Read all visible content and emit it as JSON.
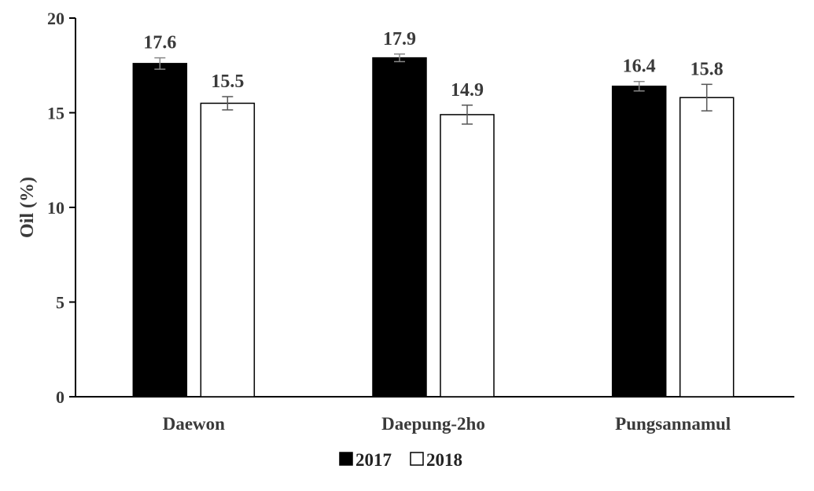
{
  "chart_data": {
    "type": "bar",
    "categories": [
      "Daewon",
      "Daepung-2ho",
      "Pungsannamul"
    ],
    "series": [
      {
        "name": "2017",
        "values": [
          17.6,
          17.9,
          16.4
        ],
        "errors": [
          0.3,
          0.2,
          0.25
        ],
        "value_labels": [
          "17.6",
          "17.9",
          "16.4"
        ],
        "color": "#000000",
        "stroke": "#000000"
      },
      {
        "name": "2018",
        "values": [
          15.5,
          14.9,
          15.8
        ],
        "errors": [
          0.35,
          0.5,
          0.7
        ],
        "value_labels": [
          "15.5",
          "14.9",
          "15.8"
        ],
        "color": "#ffffff",
        "stroke": "#000000"
      }
    ],
    "ylabel": "Oil (%)",
    "xlabel": "",
    "ylim": [
      0,
      20
    ],
    "yticks": [
      0,
      5,
      10,
      15,
      20
    ],
    "ytick_labels": [
      "0",
      "5",
      "10",
      "15",
      "20"
    ],
    "grid": false,
    "legend_placement": "bottom-center"
  }
}
